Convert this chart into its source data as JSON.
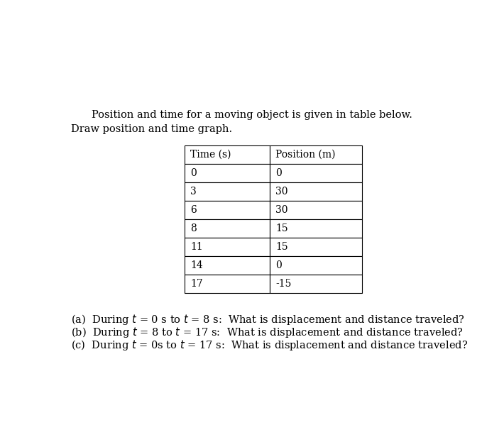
{
  "title_line1": "Position and time for a moving object is given in table below.",
  "title_line2": "Draw position and time graph.",
  "table_headers": [
    "Time (s)",
    "Position (m)"
  ],
  "table_data": [
    [
      "0",
      "0"
    ],
    [
      "3",
      "30"
    ],
    [
      "6",
      "30"
    ],
    [
      "8",
      "15"
    ],
    [
      "11",
      "15"
    ],
    [
      "14",
      "0"
    ],
    [
      "17",
      "-15"
    ]
  ],
  "question_a": "(a)  During $t$ = 0 s to $t$ = 8 s:  What is displacement and distance traveled?",
  "question_b": "(b)  During $t$ = 8 to $t$ = 17 s:  What is displacement and distance traveled?",
  "question_c": "(c)  During $t$ = 0s to $t$ = 17 s:  What is displacement and distance traveled?",
  "background_color": "#ffffff",
  "text_color": "#000000",
  "font_size_title": 10.5,
  "font_size_table": 10,
  "font_size_questions": 10.5
}
